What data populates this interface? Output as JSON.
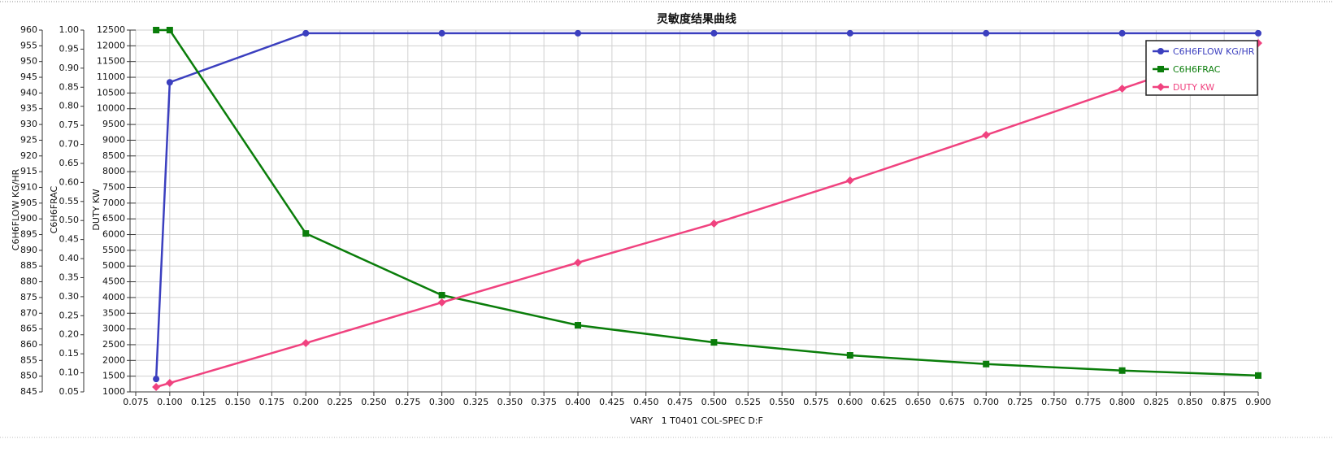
{
  "chart_data": {
    "type": "line",
    "title": "灵敏度结果曲线",
    "xlabel": "VARY   1 T0401 COL-SPEC D:F",
    "ylabel": "C6H6FLOW KG/HR",
    "y2label": "C6H6FRAC",
    "y3label": "DUTY KW",
    "x": [
      0.09,
      0.1,
      0.2,
      0.3,
      0.4,
      0.5,
      0.6,
      0.7,
      0.8,
      0.9
    ],
    "xlim": [
      0.075,
      0.9
    ],
    "xticks": [
      0.075,
      {
        "value": 0.1,
        "label": "0.100"
      },
      0.125,
      {
        "value": 0.15,
        "label": "0.150"
      },
      0.175,
      {
        "value": 0.2,
        "label": "0.200"
      },
      0.225,
      {
        "value": 0.25,
        "label": "0.250"
      },
      0.275,
      {
        "value": 0.3,
        "label": "0.300"
      },
      0.325,
      {
        "value": 0.35,
        "label": "0.350"
      },
      0.375,
      {
        "value": 0.4,
        "label": "0.400"
      },
      0.425,
      {
        "value": 0.45,
        "label": "0.450"
      },
      0.475,
      {
        "value": 0.5,
        "label": "0.500"
      },
      0.525,
      {
        "value": 0.55,
        "label": "0.550"
      },
      0.575,
      {
        "value": 0.6,
        "label": "0.600"
      },
      0.625,
      {
        "value": 0.65,
        "label": "0.650"
      },
      0.675,
      {
        "value": 0.7,
        "label": "0.700"
      },
      0.725,
      {
        "value": 0.75,
        "label": "0.750"
      },
      0.775,
      {
        "value": 0.8,
        "label": "0.800"
      },
      0.825,
      {
        "value": 0.85,
        "label": "0.850"
      },
      0.875,
      {
        "value": 0.9,
        "label": "0.900"
      }
    ],
    "ylim": [
      845,
      960
    ],
    "yticks": [
      845,
      850,
      855,
      860,
      865,
      870,
      875,
      880,
      885,
      890,
      895,
      900,
      905,
      910,
      915,
      920,
      925,
      930,
      935,
      940,
      945,
      950,
      955,
      960
    ],
    "y2lim": [
      0.05,
      1
    ],
    "y2ticks": [
      0.05,
      {
        "value": 0.1,
        "label": "0.10"
      },
      0.15,
      {
        "value": 0.2,
        "label": "0.20"
      },
      0.25,
      {
        "value": 0.3,
        "label": "0.30"
      },
      0.35,
      {
        "value": 0.4,
        "label": "0.40"
      },
      0.45,
      {
        "value": 0.5,
        "label": "0.50"
      },
      0.55,
      {
        "value": 0.6,
        "label": "0.60"
      },
      0.65,
      {
        "value": 0.7,
        "label": "0.70"
      },
      0.75,
      {
        "value": 0.8,
        "label": "0.80"
      },
      0.85,
      {
        "value": 0.9,
        "label": "0.90"
      },
      0.95,
      {
        "value": 1,
        "label": "1.00"
      }
    ],
    "y3lim": [
      1000,
      12500
    ],
    "y3ticks": [
      1000,
      1500,
      2000,
      2500,
      3000,
      3500,
      4000,
      4500,
      5000,
      5500,
      6000,
      6500,
      7000,
      7500,
      8000,
      8500,
      9000,
      9500,
      10000,
      10500,
      11000,
      11500,
      12000,
      12500
    ],
    "grid": true,
    "legend": "top-right",
    "series": [
      {
        "name": "C6H6FLOW KG/HR",
        "color": "#3b3fbf",
        "marker": "circle",
        "axis": "y",
        "values": [
          849.1,
          943.4,
          959,
          959,
          959,
          959,
          959,
          959,
          959,
          959
        ]
      },
      {
        "name": "C6H6FRAC",
        "color": "#0a7d0a",
        "marker": "square",
        "axis": "y2",
        "values": [
          1,
          1,
          0.466,
          0.304,
          0.225,
          0.18,
          0.146,
          0.123,
          0.106,
          0.093
        ]
      },
      {
        "name": "DUTY KW",
        "color": "#f0427f",
        "marker": "diamond",
        "axis": "y3",
        "values": [
          1155,
          1284,
          2550,
          3843,
          5109,
          6350,
          7718,
          9166,
          10640,
          12086
        ]
      }
    ]
  }
}
